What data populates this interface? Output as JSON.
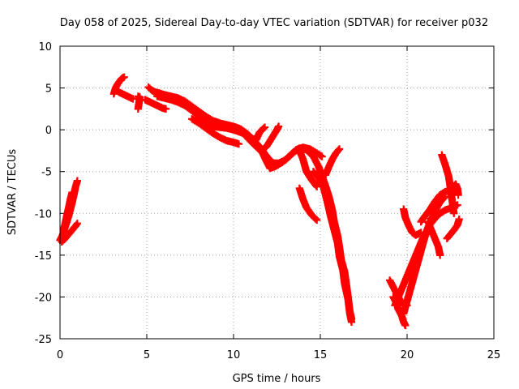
{
  "chart_data": {
    "type": "scatter",
    "title": "Day 058 of 2025, Sidereal Day-to-day VTEC variation (SDTVAR) for receiver p032",
    "xlabel": "GPS time / hours",
    "ylabel": "SDTVAR / TECUs",
    "xlim": [
      0,
      25
    ],
    "ylim": [
      -25,
      10
    ],
    "xticks": [
      0,
      5,
      10,
      15,
      20,
      25
    ],
    "yticks": [
      10,
      5,
      0,
      -5,
      -10,
      -15,
      -20,
      -25
    ],
    "xtick_labels": [
      "0",
      "5",
      "10",
      "15",
      "20",
      "25"
    ],
    "ytick_labels": [
      "10",
      "5",
      "0",
      "-5",
      "-10",
      "-15",
      "-20",
      "-25"
    ],
    "grid": true,
    "marker": "plus",
    "color": "#ff0000",
    "series": [
      {
        "points": [
          [
            0.0,
            -13.2
          ],
          [
            0.1,
            -12.8
          ],
          [
            0.2,
            -12.3
          ],
          [
            0.3,
            -11.6
          ],
          [
            0.4,
            -11.0
          ],
          [
            0.5,
            -10.3
          ],
          [
            0.6,
            -9.5
          ],
          [
            0.7,
            -8.7
          ],
          [
            0.8,
            -7.8
          ],
          [
            0.9,
            -6.8
          ],
          [
            1.0,
            -6.1
          ]
        ]
      },
      {
        "points": [
          [
            0.1,
            -13.4
          ],
          [
            0.3,
            -13.0
          ],
          [
            0.5,
            -12.5
          ],
          [
            0.7,
            -12.0
          ],
          [
            0.9,
            -11.5
          ],
          [
            1.0,
            -11.2
          ]
        ]
      },
      {
        "points": [
          [
            0.2,
            -12.0
          ],
          [
            0.3,
            -11.2
          ],
          [
            0.4,
            -10.2
          ],
          [
            0.5,
            -9.3
          ],
          [
            0.6,
            -8.3
          ],
          [
            0.7,
            -7.5
          ]
        ]
      },
      {
        "points": [
          [
            3.1,
            4.3
          ],
          [
            3.2,
            5.0
          ],
          [
            3.3,
            5.4
          ],
          [
            3.4,
            5.7
          ],
          [
            3.5,
            6.0
          ],
          [
            3.6,
            6.2
          ],
          [
            3.7,
            6.3
          ]
        ]
      },
      {
        "points": [
          [
            3.2,
            4.8
          ],
          [
            3.4,
            4.5
          ],
          [
            3.6,
            4.3
          ],
          [
            3.8,
            4.1
          ],
          [
            4.0,
            3.9
          ],
          [
            4.2,
            3.7
          ]
        ]
      },
      {
        "points": [
          [
            4.5,
            4.0
          ],
          [
            4.6,
            3.9
          ],
          [
            4.5,
            2.5
          ]
        ]
      },
      {
        "points": [
          [
            4.9,
            3.6
          ],
          [
            5.1,
            3.4
          ],
          [
            5.3,
            3.2
          ],
          [
            5.5,
            3.0
          ],
          [
            5.7,
            2.8
          ],
          [
            5.9,
            2.6
          ],
          [
            6.1,
            2.5
          ]
        ]
      },
      {
        "points": [
          [
            5.1,
            5.1
          ],
          [
            5.3,
            4.7
          ],
          [
            5.5,
            4.5
          ],
          [
            5.7,
            4.4
          ],
          [
            6.0,
            4.2
          ],
          [
            6.4,
            4.0
          ],
          [
            6.8,
            3.8
          ],
          [
            7.2,
            3.4
          ],
          [
            7.6,
            2.8
          ],
          [
            8.0,
            2.2
          ],
          [
            8.4,
            1.6
          ],
          [
            8.8,
            1.1
          ],
          [
            9.2,
            0.8
          ],
          [
            9.6,
            0.6
          ],
          [
            10.0,
            0.4
          ],
          [
            10.4,
            0.1
          ],
          [
            10.8,
            -0.5
          ],
          [
            11.2,
            -1.3
          ],
          [
            11.6,
            -2.3
          ],
          [
            12.0,
            -3.4
          ],
          [
            12.2,
            -4.0
          ]
        ]
      },
      {
        "points": [
          [
            5.6,
            4.0
          ],
          [
            6.0,
            3.8
          ],
          [
            6.4,
            3.6
          ],
          [
            6.8,
            3.3
          ],
          [
            7.2,
            2.9
          ],
          [
            7.6,
            2.3
          ],
          [
            8.0,
            1.6
          ],
          [
            8.4,
            0.9
          ],
          [
            8.8,
            0.4
          ],
          [
            9.2,
            0.3
          ],
          [
            9.6,
            0.2
          ],
          [
            10.0,
            0.0
          ],
          [
            10.4,
            -0.3
          ],
          [
            10.8,
            -0.6
          ]
        ]
      },
      {
        "points": [
          [
            7.6,
            1.3
          ],
          [
            8.0,
            0.8
          ],
          [
            8.4,
            0.2
          ],
          [
            8.8,
            -0.4
          ],
          [
            9.2,
            -0.9
          ],
          [
            9.6,
            -1.3
          ],
          [
            10.0,
            -1.5
          ],
          [
            10.3,
            -1.7
          ]
        ]
      },
      {
        "points": [
          [
            10.2,
            0.2
          ],
          [
            10.6,
            -0.5
          ],
          [
            11.0,
            -1.4
          ],
          [
            11.4,
            -2.2
          ],
          [
            11.8,
            -3.0
          ],
          [
            12.1,
            -3.6
          ]
        ]
      },
      {
        "points": [
          [
            11.4,
            -1.8
          ],
          [
            11.7,
            -2.9
          ],
          [
            11.9,
            -3.8
          ],
          [
            12.1,
            -4.6
          ],
          [
            12.4,
            -4.4
          ],
          [
            12.8,
            -3.9
          ],
          [
            13.2,
            -3.2
          ],
          [
            13.6,
            -2.4
          ],
          [
            14.0,
            -2.1
          ],
          [
            14.4,
            -2.3
          ],
          [
            14.8,
            -2.8
          ],
          [
            15.1,
            -3.2
          ]
        ]
      },
      {
        "points": [
          [
            11.0,
            -1.0
          ],
          [
            11.3,
            -1.2
          ],
          [
            11.5,
            -0.3
          ],
          [
            11.8,
            0.3
          ]
        ]
      },
      {
        "points": [
          [
            11.6,
            -2.5
          ],
          [
            11.9,
            -2.0
          ],
          [
            12.2,
            -1.0
          ],
          [
            12.5,
            0.0
          ],
          [
            12.6,
            0.4
          ]
        ]
      },
      {
        "points": [
          [
            12.2,
            -4.0
          ],
          [
            12.6,
            -4.0
          ],
          [
            13.0,
            -3.6
          ],
          [
            13.4,
            -2.8
          ],
          [
            13.8,
            -2.2
          ],
          [
            14.2,
            -2.4
          ],
          [
            14.6,
            -3.2
          ],
          [
            14.9,
            -4.4
          ],
          [
            15.1,
            -5.5
          ],
          [
            15.3,
            -6.7
          ],
          [
            15.5,
            -8.0
          ],
          [
            15.7,
            -9.7
          ],
          [
            15.8,
            -11.0
          ],
          [
            16.0,
            -12.7
          ],
          [
            16.1,
            -14.0
          ],
          [
            16.2,
            -15.5
          ],
          [
            16.4,
            -17.0
          ],
          [
            16.5,
            -18.5
          ],
          [
            16.6,
            -20.0
          ],
          [
            16.7,
            -21.7
          ],
          [
            16.8,
            -22.6
          ]
        ]
      },
      {
        "points": [
          [
            14.6,
            -5.0
          ],
          [
            14.9,
            -5.8
          ],
          [
            15.2,
            -7.0
          ],
          [
            15.4,
            -8.6
          ],
          [
            15.6,
            -10.4
          ],
          [
            15.8,
            -12.0
          ],
          [
            16.0,
            -13.6
          ],
          [
            16.1,
            -15.2
          ],
          [
            16.3,
            -16.8
          ],
          [
            16.4,
            -18.4
          ],
          [
            16.6,
            -20.3
          ],
          [
            16.7,
            -22.0
          ],
          [
            16.8,
            -23.0
          ]
        ]
      },
      {
        "points": [
          [
            13.8,
            -2.5
          ],
          [
            14.0,
            -3.5
          ],
          [
            14.2,
            -5.0
          ],
          [
            14.5,
            -6.0
          ],
          [
            14.8,
            -6.8
          ]
        ]
      },
      {
        "points": [
          [
            15.3,
            -5.4
          ],
          [
            15.5,
            -4.4
          ],
          [
            15.7,
            -3.5
          ],
          [
            15.9,
            -2.8
          ],
          [
            16.1,
            -2.3
          ]
        ]
      },
      {
        "points": [
          [
            13.8,
            -7.0
          ],
          [
            14.0,
            -8.3
          ],
          [
            14.2,
            -9.3
          ],
          [
            14.5,
            -10.2
          ],
          [
            14.8,
            -10.8
          ]
        ]
      },
      {
        "points": [
          [
            19.2,
            -20.0
          ],
          [
            19.4,
            -20.8
          ],
          [
            19.5,
            -21.5
          ],
          [
            19.7,
            -22.3
          ],
          [
            19.8,
            -23.0
          ],
          [
            19.9,
            -23.4
          ]
        ]
      },
      {
        "points": [
          [
            19.8,
            -22.0
          ],
          [
            20.0,
            -20.5
          ],
          [
            20.2,
            -19.0
          ],
          [
            20.4,
            -17.5
          ],
          [
            20.6,
            -16.0
          ],
          [
            20.8,
            -14.5
          ],
          [
            21.0,
            -13.0
          ],
          [
            21.2,
            -11.7
          ],
          [
            21.4,
            -10.7
          ],
          [
            21.6,
            -9.8
          ],
          [
            21.8,
            -9.0
          ],
          [
            22.0,
            -8.4
          ],
          [
            22.2,
            -8.0
          ]
        ]
      },
      {
        "points": [
          [
            19.3,
            -21.0
          ],
          [
            19.5,
            -20.0
          ],
          [
            19.7,
            -19.0
          ],
          [
            19.9,
            -18.0
          ],
          [
            20.1,
            -17.0
          ],
          [
            20.3,
            -16.0
          ],
          [
            20.5,
            -15.0
          ],
          [
            20.7,
            -14.0
          ],
          [
            20.9,
            -13.0
          ],
          [
            21.1,
            -12.2
          ],
          [
            21.3,
            -11.4
          ],
          [
            21.6,
            -10.6
          ],
          [
            21.9,
            -10.0
          ],
          [
            22.2,
            -9.6
          ],
          [
            22.6,
            -9.3
          ],
          [
            22.9,
            -9.0
          ]
        ]
      },
      {
        "points": [
          [
            19.0,
            -18.0
          ],
          [
            19.2,
            -18.8
          ],
          [
            19.4,
            -19.6
          ],
          [
            19.6,
            -20.4
          ],
          [
            19.8,
            -21.0
          ],
          [
            20.0,
            -21.0
          ]
        ]
      },
      {
        "points": [
          [
            19.8,
            -9.5
          ],
          [
            19.9,
            -10.5
          ],
          [
            20.1,
            -11.5
          ],
          [
            20.3,
            -12.3
          ],
          [
            20.5,
            -12.6
          ],
          [
            20.8,
            -12.3
          ]
        ]
      },
      {
        "points": [
          [
            20.8,
            -11.0
          ],
          [
            21.0,
            -10.4
          ],
          [
            21.3,
            -9.6
          ],
          [
            21.6,
            -8.6
          ],
          [
            21.9,
            -7.8
          ],
          [
            22.2,
            -7.4
          ],
          [
            22.5,
            -7.3
          ],
          [
            22.8,
            -7.4
          ]
        ]
      },
      {
        "points": [
          [
            21.2,
            -11.0
          ],
          [
            21.4,
            -12.0
          ],
          [
            21.6,
            -13.0
          ],
          [
            21.8,
            -14.0
          ],
          [
            21.9,
            -15.0
          ]
        ]
      },
      {
        "points": [
          [
            22.0,
            -3.0
          ],
          [
            22.2,
            -4.2
          ],
          [
            22.4,
            -5.6
          ],
          [
            22.5,
            -7.0
          ],
          [
            22.6,
            -8.5
          ],
          [
            22.7,
            -10.0
          ]
        ]
      },
      {
        "points": [
          [
            22.6,
            -7.0
          ],
          [
            22.8,
            -6.5
          ],
          [
            22.9,
            -7.0
          ],
          [
            22.95,
            -7.8
          ]
        ]
      },
      {
        "points": [
          [
            22.3,
            -13.0
          ],
          [
            22.5,
            -12.5
          ],
          [
            22.7,
            -12.0
          ],
          [
            22.9,
            -11.4
          ],
          [
            23.0,
            -10.7
          ]
        ]
      }
    ]
  }
}
